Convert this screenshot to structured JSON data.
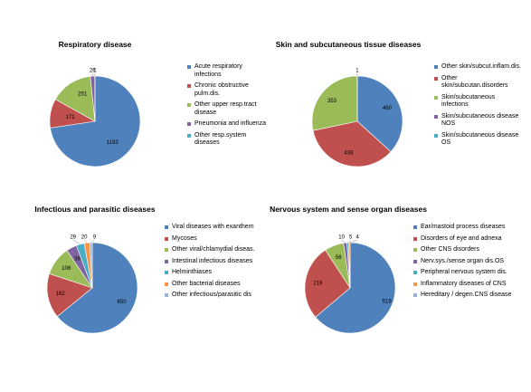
{
  "chart_data": [
    {
      "type": "pie",
      "title": "Respiratory disease",
      "categories": [
        "Acute respiratory infections",
        "Chronic obstructive pulm.dis.",
        "Other upper resp.tract disease",
        "Pneumonia and influenza",
        "Other resp.system diseases"
      ],
      "values": [
        1193,
        171,
        251,
        26,
        1
      ],
      "colors": [
        "#4F81BD",
        "#C0504D",
        "#9BBB59",
        "#8064A2",
        "#4BACC6"
      ],
      "legend_position": "right"
    },
    {
      "type": "pie",
      "title": "Skin and subcutaneous tissue diseases",
      "categories": [
        "Other skin/subcut.inflam.dis.",
        "Other skin/subcutan.disorders",
        "Skin/subcutaneous infections",
        "Skin/subcutaneous disease NOS",
        "Skin/subcutaneous disease OS"
      ],
      "values": [
        460,
        438,
        353,
        1,
        0
      ],
      "colors": [
        "#4F81BD",
        "#C0504D",
        "#9BBB59",
        "#8064A2",
        "#4BACC6"
      ],
      "legend_position": "right"
    },
    {
      "type": "pie",
      "title": "Infectious and parasitic diseases",
      "categories": [
        "Viral diseases with exanthem",
        "Mycoses",
        "Other viral/chlamydial diseas.",
        "Intestinal infectious diseases",
        "Helminthiases",
        "Other bacterial diseases",
        "Other infectious/parasitic dis"
      ],
      "values": [
        650,
        162,
        106,
        38,
        29,
        20,
        9
      ],
      "colors": [
        "#4F81BD",
        "#C0504D",
        "#9BBB59",
        "#8064A2",
        "#4BACC6",
        "#F79646",
        "#95B3D7"
      ],
      "legend_position": "right"
    },
    {
      "type": "pie",
      "title": "Nervous system and sense organ diseases",
      "categories": [
        "Ear/mastoid process diseases",
        "Disorders of eye and adnexa",
        "Other CNS disorders",
        "Nerv.sys./sense organ dis.OS",
        "Peripheral nervous system dis.",
        "Inflammatory diseases of CNS",
        "Hereditary / degen.CNS disease"
      ],
      "values": [
        519,
        219,
        56,
        10,
        5,
        4,
        0
      ],
      "colors": [
        "#4F81BD",
        "#C0504D",
        "#9BBB59",
        "#8064A2",
        "#4BACC6",
        "#F79646",
        "#95B3D7"
      ],
      "legend_position": "right"
    }
  ]
}
